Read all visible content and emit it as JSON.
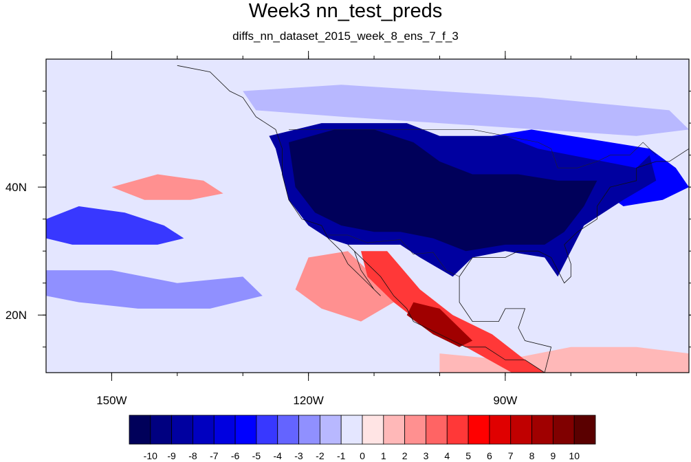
{
  "title": "Week3 nn_test_preds",
  "subtitle": "diffs_nn_dataset_2015_week_8_ens_7_f_3",
  "map": {
    "projection": "cylindrical-equidistant",
    "lon_range": [
      -160,
      -62
    ],
    "lat_range": [
      11,
      60
    ],
    "lon_tick_labels": [
      {
        "lon": -150,
        "label": "150W"
      },
      {
        "lon": -120,
        "label": "120W"
      },
      {
        "lon": -90,
        "label": "90W"
      }
    ],
    "lat_tick_labels": [
      {
        "lat": 40,
        "label": "40N"
      },
      {
        "lat": 20,
        "label": "20N"
      }
    ],
    "minor_lon_ticks": [
      -150,
      -140,
      -130,
      -120,
      -110,
      -100,
      -90,
      -80,
      -70
    ],
    "minor_lat_ticks": [
      15,
      20,
      25,
      30,
      35,
      40,
      45,
      50,
      55
    ],
    "background_value": -1
  },
  "colorbar": {
    "labels": [
      "-10",
      "-9",
      "-8",
      "-7",
      "-6",
      "-5",
      "-4",
      "-3",
      "-2",
      "-1",
      "0",
      "1",
      "2",
      "3",
      "4",
      "5",
      "6",
      "7",
      "8",
      "9",
      "10"
    ],
    "colors": [
      "#00005a",
      "#000080",
      "#0000a0",
      "#0000c0",
      "#0000e0",
      "#0000ff",
      "#3838ff",
      "#6464ff",
      "#9090ff",
      "#b8b8ff",
      "#e4e6ff",
      "#ffe4e4",
      "#ffb8b8",
      "#ff9090",
      "#ff6464",
      "#ff3838",
      "#ff0000",
      "#e00000",
      "#c00000",
      "#a00000",
      "#800000",
      "#5a0000"
    ]
  },
  "field_regions": [
    {
      "name": "us-west-negative",
      "value": -9,
      "lon_lat": [
        [
          -126,
          48
        ],
        [
          -118,
          50
        ],
        [
          -105,
          50
        ],
        [
          -100,
          48
        ],
        [
          -95,
          48
        ],
        [
          -90,
          48
        ],
        [
          -85,
          46
        ],
        [
          -80,
          45
        ],
        [
          -75,
          44
        ],
        [
          -70,
          43
        ],
        [
          -68,
          45
        ],
        [
          -67,
          41
        ],
        [
          -72,
          38
        ],
        [
          -78,
          34
        ],
        [
          -80,
          30
        ],
        [
          -82,
          26
        ],
        [
          -84,
          29
        ],
        [
          -90,
          30
        ],
        [
          -95,
          29
        ],
        [
          -98,
          26
        ],
        [
          -103,
          29
        ],
        [
          -106,
          31
        ],
        [
          -110,
          31
        ],
        [
          -114,
          31
        ],
        [
          -117,
          32
        ],
        [
          -120,
          34
        ],
        [
          -123,
          38
        ],
        [
          -124,
          42
        ],
        [
          -125,
          46
        ]
      ]
    },
    {
      "name": "us-core-negative",
      "value": -11,
      "lon_lat": [
        [
          -123,
          47
        ],
        [
          -116,
          49
        ],
        [
          -110,
          49
        ],
        [
          -104,
          47
        ],
        [
          -100,
          44
        ],
        [
          -95,
          42
        ],
        [
          -88,
          42
        ],
        [
          -82,
          41
        ],
        [
          -76,
          41
        ],
        [
          -78,
          37
        ],
        [
          -81,
          33
        ],
        [
          -84,
          31
        ],
        [
          -90,
          31
        ],
        [
          -96,
          30
        ],
        [
          -101,
          32
        ],
        [
          -106,
          33
        ],
        [
          -110,
          33
        ],
        [
          -115,
          34
        ],
        [
          -119,
          36
        ],
        [
          -122,
          40
        ]
      ]
    },
    {
      "name": "northeast-negative",
      "value": -6,
      "lon_lat": [
        [
          -92,
          48
        ],
        [
          -86,
          49
        ],
        [
          -80,
          48
        ],
        [
          -74,
          47
        ],
        [
          -68,
          46
        ],
        [
          -64,
          43
        ],
        [
          -62,
          40
        ],
        [
          -66,
          38
        ],
        [
          -72,
          37
        ],
        [
          -76,
          40
        ],
        [
          -82,
          43
        ],
        [
          -88,
          44
        ]
      ]
    },
    {
      "name": "east-pacific-negative",
      "value": -5,
      "lon_lat": [
        [
          -160,
          35
        ],
        [
          -155,
          37
        ],
        [
          -148,
          36
        ],
        [
          -142,
          34
        ],
        [
          -139,
          32
        ],
        [
          -143,
          31
        ],
        [
          -150,
          31
        ],
        [
          -156,
          31
        ],
        [
          -160,
          32
        ]
      ]
    },
    {
      "name": "mid-pacific-light-negative",
      "value": -3,
      "lon_lat": [
        [
          -160,
          27
        ],
        [
          -150,
          27
        ],
        [
          -140,
          25
        ],
        [
          -130,
          26
        ],
        [
          -127,
          23
        ],
        [
          -135,
          21
        ],
        [
          -146,
          21
        ],
        [
          -155,
          22
        ],
        [
          -160,
          23
        ]
      ]
    },
    {
      "name": "pacific-positive-patch",
      "value": 2,
      "lon_lat": [
        [
          -150,
          40
        ],
        [
          -143,
          42
        ],
        [
          -136,
          41
        ],
        [
          -133,
          39
        ],
        [
          -138,
          38
        ],
        [
          -145,
          38
        ]
      ]
    },
    {
      "name": "baja-positive",
      "value": 2,
      "lon_lat": [
        [
          -120,
          29
        ],
        [
          -114,
          30
        ],
        [
          -110,
          26
        ],
        [
          -107,
          22
        ],
        [
          -112,
          19
        ],
        [
          -118,
          21
        ],
        [
          -122,
          24
        ]
      ]
    },
    {
      "name": "mexico-positive",
      "value": 4,
      "lon_lat": [
        [
          -112,
          30
        ],
        [
          -108,
          30
        ],
        [
          -103,
          24
        ],
        [
          -98,
          20
        ],
        [
          -92,
          17
        ],
        [
          -87,
          13
        ],
        [
          -84,
          11
        ],
        [
          -89,
          11
        ],
        [
          -96,
          15
        ],
        [
          -102,
          18
        ],
        [
          -107,
          22
        ],
        [
          -111,
          26
        ]
      ]
    },
    {
      "name": "mexico-strong-positive",
      "value": 8,
      "lon_lat": [
        [
          -104,
          22
        ],
        [
          -100,
          21
        ],
        [
          -97,
          18
        ],
        [
          -95,
          16
        ],
        [
          -97,
          15
        ],
        [
          -101,
          17
        ],
        [
          -105,
          20
        ]
      ]
    },
    {
      "name": "tropical-east-positive",
      "value": 1,
      "lon_lat": [
        [
          -100,
          14
        ],
        [
          -90,
          13
        ],
        [
          -80,
          15
        ],
        [
          -70,
          15
        ],
        [
          -62,
          14
        ],
        [
          -62,
          11
        ],
        [
          -100,
          11
        ]
      ]
    },
    {
      "name": "canada-light-negative",
      "value": -2,
      "lon_lat": [
        [
          -130,
          55
        ],
        [
          -115,
          56
        ],
        [
          -100,
          55
        ],
        [
          -85,
          54
        ],
        [
          -75,
          53
        ],
        [
          -65,
          52
        ],
        [
          -62,
          49
        ],
        [
          -70,
          48
        ],
        [
          -85,
          49
        ],
        [
          -100,
          50
        ],
        [
          -115,
          51
        ],
        [
          -128,
          52
        ]
      ]
    }
  ],
  "coastlines": [
    {
      "name": "north-america-coast",
      "lon_lat": [
        [
          -140,
          59
        ],
        [
          -135,
          58
        ],
        [
          -132,
          55
        ],
        [
          -130,
          54
        ],
        [
          -128,
          51
        ],
        [
          -125,
          49
        ],
        [
          -124,
          46
        ],
        [
          -124,
          42
        ],
        [
          -123,
          38
        ],
        [
          -121,
          35
        ],
        [
          -118,
          34
        ],
        [
          -117,
          32
        ],
        [
          -115,
          30
        ],
        [
          -114,
          28
        ],
        [
          -112,
          26
        ],
        [
          -110,
          24
        ],
        [
          -109,
          23
        ],
        [
          -110,
          24
        ],
        [
          -112,
          27
        ],
        [
          -113,
          30
        ],
        [
          -114,
          31
        ],
        [
          -113,
          30
        ],
        [
          -111,
          28
        ],
        [
          -109,
          26
        ],
        [
          -107,
          23
        ],
        [
          -105,
          21
        ],
        [
          -104,
          19
        ],
        [
          -100,
          17
        ],
        [
          -96,
          15
        ],
        [
          -93,
          15
        ],
        [
          -90,
          13
        ],
        [
          -87,
          13
        ],
        [
          -84,
          11
        ]
      ]
    },
    {
      "name": "gulf-coast",
      "lon_lat": [
        [
          -84,
          11
        ],
        [
          -83,
          15
        ],
        [
          -87,
          16
        ],
        [
          -88,
          18
        ],
        [
          -87,
          21
        ],
        [
          -90,
          21
        ],
        [
          -91,
          19
        ],
        [
          -95,
          19
        ],
        [
          -97,
          22
        ],
        [
          -97,
          26
        ],
        [
          -95,
          29
        ],
        [
          -90,
          29
        ],
        [
          -88,
          30
        ],
        [
          -85,
          30
        ],
        [
          -83,
          29
        ],
        [
          -82,
          27
        ],
        [
          -81,
          25
        ],
        [
          -80,
          26
        ],
        [
          -80,
          28
        ],
        [
          -81,
          31
        ],
        [
          -79,
          33
        ],
        [
          -76,
          35
        ],
        [
          -76,
          37
        ],
        [
          -74,
          40
        ],
        [
          -70,
          41
        ],
        [
          -70,
          43
        ],
        [
          -67,
          44
        ],
        [
          -65,
          44
        ],
        [
          -62,
          46
        ]
      ]
    }
  ],
  "borders": [
    {
      "name": "us-canada-border",
      "lon_lat": [
        [
          -123,
          49
        ],
        [
          -95,
          49
        ],
        [
          -90,
          48
        ],
        [
          -85,
          47
        ],
        [
          -83,
          46
        ],
        [
          -82,
          43
        ],
        [
          -79,
          43
        ],
        [
          -76,
          44
        ],
        [
          -74,
          45
        ],
        [
          -71,
          45
        ],
        [
          -69,
          47
        ],
        [
          -67,
          45
        ]
      ]
    },
    {
      "name": "us-mexico-border",
      "lon_lat": [
        [
          -117,
          32.5
        ],
        [
          -114,
          32.5
        ],
        [
          -111,
          31.3
        ],
        [
          -106,
          31.8
        ],
        [
          -104,
          29.5
        ],
        [
          -101,
          29.8
        ],
        [
          -99,
          27
        ],
        [
          -97,
          26
        ]
      ]
    }
  ]
}
